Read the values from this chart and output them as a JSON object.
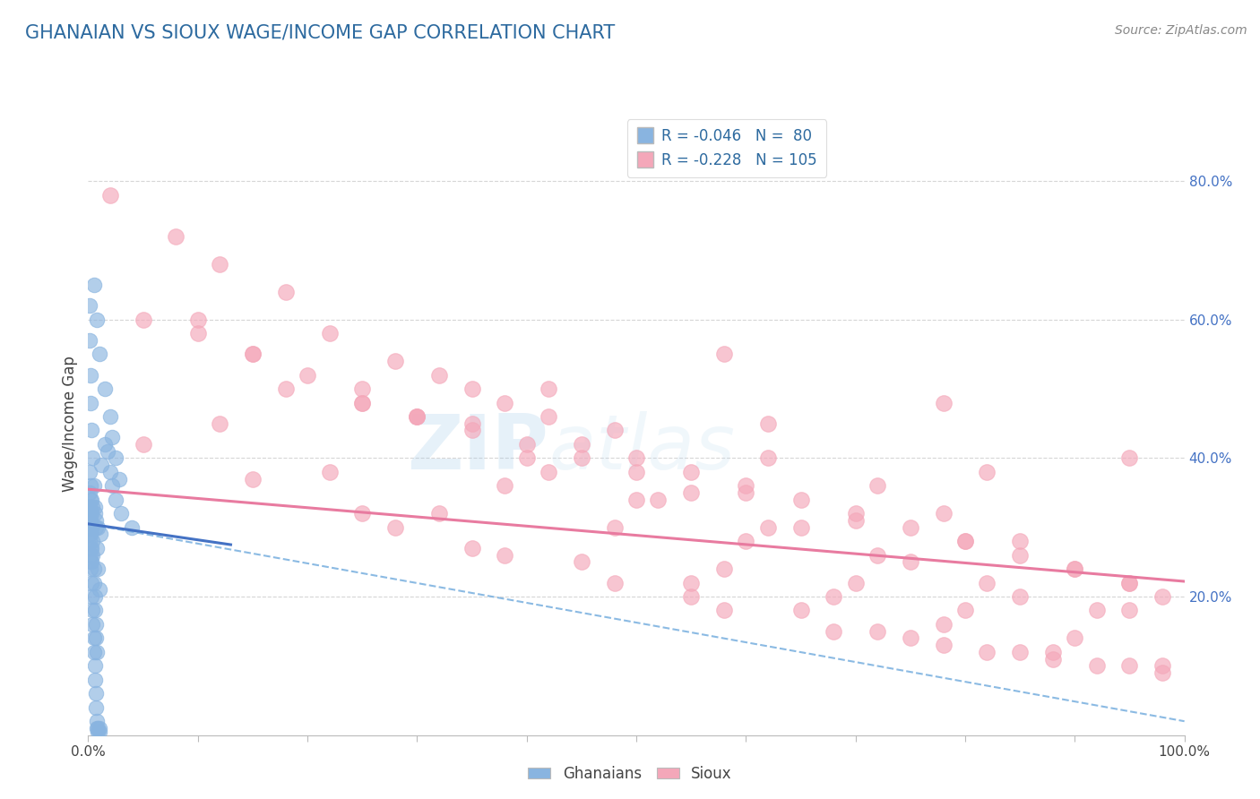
{
  "title": "GHANAIAN VS SIOUX WAGE/INCOME GAP CORRELATION CHART",
  "title_color": "#2D6A9F",
  "source_text": "Source: ZipAtlas.com",
  "ylabel": "Wage/Income Gap",
  "xlim": [
    0.0,
    1.0
  ],
  "ylim": [
    0.0,
    0.9
  ],
  "y_tick_positions_right": [
    0.2,
    0.4,
    0.6,
    0.8
  ],
  "y_tick_labels_right": [
    "20.0%",
    "40.0%",
    "60.0%",
    "80.0%"
  ],
  "ghanaian_color": "#89B4E0",
  "sioux_color": "#F4A7B9",
  "ghanaian_R": -0.046,
  "ghanaian_N": 80,
  "sioux_R": -0.228,
  "sioux_N": 105,
  "legend_label_ghanaians": "Ghanaians",
  "legend_label_sioux": "Sioux",
  "watermark_zip": "ZIP",
  "watermark_atlas": "atlas",
  "background_color": "#FFFFFF",
  "ghanaian_line_color": "#4472C4",
  "sioux_line_color": "#E87BA0",
  "dashed_line_color": "#7FB3E0",
  "grid_color": "#CCCCCC",
  "ghanaian_points_x": [
    0.005,
    0.008,
    0.01,
    0.015,
    0.02,
    0.022,
    0.025,
    0.028,
    0.003,
    0.004,
    0.006,
    0.007,
    0.009,
    0.011,
    0.001,
    0.001,
    0.002,
    0.002,
    0.003,
    0.004,
    0.005,
    0.006,
    0.007,
    0.008,
    0.009,
    0.01,
    0.001,
    0.002,
    0.002,
    0.003,
    0.003,
    0.004,
    0.004,
    0.005,
    0.005,
    0.006,
    0.006,
    0.007,
    0.007,
    0.008,
    0.001,
    0.001,
    0.002,
    0.002,
    0.003,
    0.003,
    0.001,
    0.001,
    0.002,
    0.002,
    0.002,
    0.001,
    0.001,
    0.001,
    0.002,
    0.002,
    0.003,
    0.003,
    0.004,
    0.004,
    0.005,
    0.005,
    0.006,
    0.006,
    0.007,
    0.007,
    0.008,
    0.008,
    0.009,
    0.009,
    0.01,
    0.01,
    0.012,
    0.015,
    0.018,
    0.02,
    0.022,
    0.025,
    0.03,
    0.04
  ],
  "ghanaian_points_y": [
    0.65,
    0.6,
    0.55,
    0.5,
    0.46,
    0.43,
    0.4,
    0.37,
    0.34,
    0.33,
    0.32,
    0.31,
    0.3,
    0.29,
    0.62,
    0.57,
    0.52,
    0.48,
    0.44,
    0.4,
    0.36,
    0.33,
    0.3,
    0.27,
    0.24,
    0.21,
    0.38,
    0.36,
    0.34,
    0.32,
    0.3,
    0.28,
    0.26,
    0.24,
    0.22,
    0.2,
    0.18,
    0.16,
    0.14,
    0.12,
    0.35,
    0.33,
    0.31,
    0.29,
    0.27,
    0.25,
    0.33,
    0.31,
    0.29,
    0.27,
    0.25,
    0.32,
    0.3,
    0.28,
    0.26,
    0.24,
    0.22,
    0.2,
    0.18,
    0.16,
    0.14,
    0.12,
    0.1,
    0.08,
    0.06,
    0.04,
    0.02,
    0.01,
    0.01,
    0.005,
    0.005,
    0.01,
    0.39,
    0.42,
    0.41,
    0.38,
    0.36,
    0.34,
    0.32,
    0.3
  ],
  "sioux_points_x": [
    0.02,
    0.08,
    0.12,
    0.18,
    0.1,
    0.22,
    0.15,
    0.28,
    0.32,
    0.35,
    0.38,
    0.42,
    0.48,
    0.25,
    0.3,
    0.35,
    0.45,
    0.5,
    0.55,
    0.6,
    0.65,
    0.7,
    0.75,
    0.8,
    0.85,
    0.9,
    0.95,
    0.98,
    0.18,
    0.25,
    0.3,
    0.4,
    0.5,
    0.6,
    0.7,
    0.8,
    0.9,
    0.95,
    0.62,
    0.72,
    0.78,
    0.85,
    0.42,
    0.52,
    0.62,
    0.72,
    0.82,
    0.92,
    0.05,
    0.15,
    0.25,
    0.35,
    0.45,
    0.55,
    0.65,
    0.75,
    0.85,
    0.95,
    0.1,
    0.2,
    0.3,
    0.4,
    0.5,
    0.6,
    0.7,
    0.8,
    0.9,
    0.38,
    0.48,
    0.58,
    0.68,
    0.78,
    0.88,
    0.98,
    0.05,
    0.15,
    0.25,
    0.35,
    0.55,
    0.65,
    0.75,
    0.85,
    0.95,
    0.12,
    0.22,
    0.32,
    0.45,
    0.55,
    0.72,
    0.82,
    0.92,
    0.28,
    0.38,
    0.48,
    0.58,
    0.68,
    0.78,
    0.88,
    0.98,
    0.42,
    0.62,
    0.82,
    0.58,
    0.78,
    0.95
  ],
  "sioux_points_y": [
    0.78,
    0.72,
    0.68,
    0.64,
    0.6,
    0.58,
    0.55,
    0.54,
    0.52,
    0.5,
    0.48,
    0.46,
    0.44,
    0.48,
    0.46,
    0.44,
    0.42,
    0.4,
    0.38,
    0.36,
    0.34,
    0.32,
    0.3,
    0.28,
    0.26,
    0.24,
    0.22,
    0.2,
    0.5,
    0.48,
    0.46,
    0.42,
    0.38,
    0.35,
    0.31,
    0.28,
    0.24,
    0.22,
    0.4,
    0.36,
    0.32,
    0.28,
    0.38,
    0.34,
    0.3,
    0.26,
    0.22,
    0.18,
    0.6,
    0.55,
    0.5,
    0.45,
    0.4,
    0.35,
    0.3,
    0.25,
    0.2,
    0.18,
    0.58,
    0.52,
    0.46,
    0.4,
    0.34,
    0.28,
    0.22,
    0.18,
    0.14,
    0.36,
    0.3,
    0.24,
    0.2,
    0.16,
    0.12,
    0.1,
    0.42,
    0.37,
    0.32,
    0.27,
    0.22,
    0.18,
    0.14,
    0.12,
    0.1,
    0.45,
    0.38,
    0.32,
    0.25,
    0.2,
    0.15,
    0.12,
    0.1,
    0.3,
    0.26,
    0.22,
    0.18,
    0.15,
    0.13,
    0.11,
    0.09,
    0.5,
    0.45,
    0.38,
    0.55,
    0.48,
    0.4
  ]
}
